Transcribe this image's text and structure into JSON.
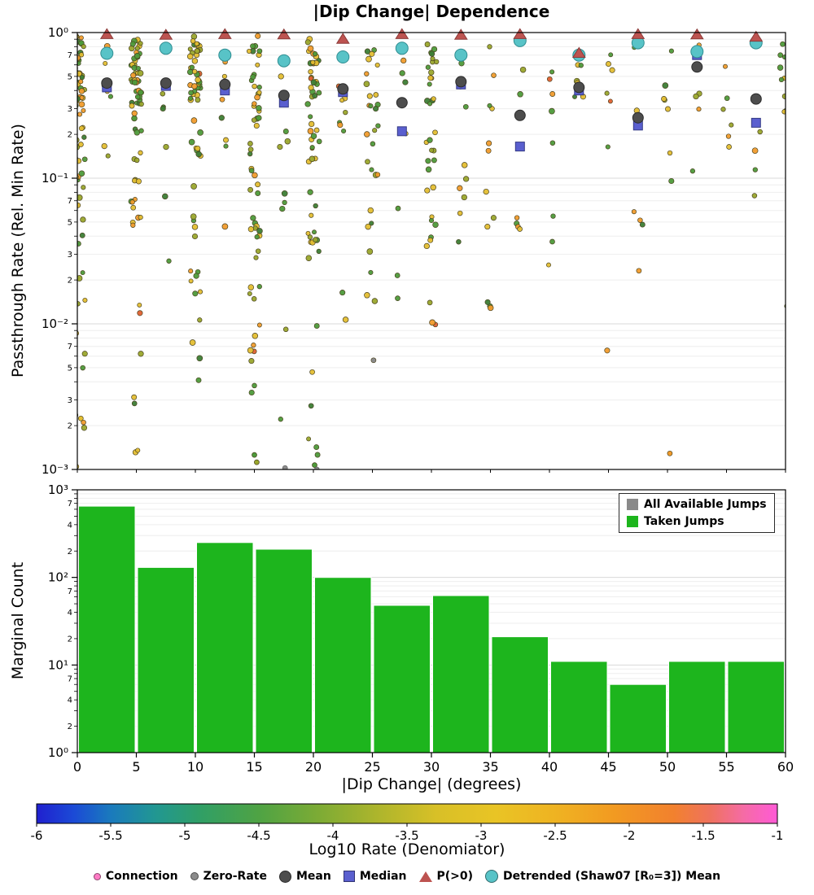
{
  "title": "|Dip Change| Dependence",
  "top_panel": {
    "ylabel": "Passthrough Rate (Rel. Min Rate)",
    "y_major_labels": [
      "10⁰",
      "10⁻¹",
      "10⁻²",
      "10⁻³"
    ],
    "y_minor_labeled": [
      7,
      5,
      3,
      2
    ]
  },
  "bottom_panel": {
    "ylabel": "Marginal Count",
    "xlabel": "|Dip Change| (degrees)",
    "y_major_labels": [
      "10³",
      "10²",
      "10¹",
      "10⁰"
    ],
    "y_minor_labeled": [
      7,
      4,
      2
    ],
    "legend": [
      {
        "label": "All Available Jumps",
        "color": "#8a8a8a"
      },
      {
        "label": "Taken Jumps",
        "color": "#1db51d"
      }
    ]
  },
  "colorbar": {
    "title": "Log10 Rate (Denomiator)",
    "range": [
      -6,
      -1
    ],
    "ticks": [
      -6,
      -5.5,
      -5,
      -4.5,
      -4,
      -3.5,
      -3,
      -2.5,
      -2,
      -1.5,
      -1
    ],
    "stops": [
      [
        0,
        "#2020cf"
      ],
      [
        0.05,
        "#1b4ad6"
      ],
      [
        0.1,
        "#1a7abd"
      ],
      [
        0.16,
        "#219792"
      ],
      [
        0.22,
        "#309f66"
      ],
      [
        0.3,
        "#4fa344"
      ],
      [
        0.38,
        "#7cab35"
      ],
      [
        0.46,
        "#adb52c"
      ],
      [
        0.54,
        "#d8c027"
      ],
      [
        0.62,
        "#e9c425"
      ],
      [
        0.7,
        "#efb322"
      ],
      [
        0.78,
        "#f29a21"
      ],
      [
        0.86,
        "#f2812e"
      ],
      [
        0.91,
        "#ef725f"
      ],
      [
        0.955,
        "#f56ba6"
      ],
      [
        1,
        "#ff5ad6"
      ]
    ]
  },
  "legend_bottom": [
    {
      "label": "Connection",
      "marker": "circle",
      "color": "#ff7bc5",
      "size": 7
    },
    {
      "label": "Zero-Rate",
      "marker": "circle",
      "color": "#8c8c8c",
      "size": 8
    },
    {
      "label": "Mean",
      "marker": "circle",
      "color": "#4d4d4d",
      "size": 13
    },
    {
      "label": "Median",
      "marker": "square",
      "color": "#5a5fcf",
      "size": 12
    },
    {
      "label": "P(>0)",
      "marker": "triangle",
      "color": "#bd5350",
      "size": 13
    },
    {
      "label": "Detrended (Shaw07 [R₀=3]) Mean",
      "marker": "circle",
      "color": "#58c3c7",
      "size": 14
    }
  ],
  "chart_data": [
    {
      "type": "scatter",
      "title": "|Dip Change| Dependence",
      "xlabel": "",
      "ylabel": "Passthrough Rate (Rel. Min Rate)",
      "xlim": [
        0,
        60
      ],
      "ylim_log10": [
        -3,
        0
      ],
      "grid": true,
      "x_bin_centers": [
        2.5,
        7.5,
        12.5,
        17.5,
        22.5,
        27.5,
        32.5,
        37.5,
        42.5,
        47.5,
        52.5,
        57.5
      ],
      "series": [
        {
          "name": "Mean",
          "marker": "circle",
          "color": "#4d4d4d",
          "y": [
            0.45,
            0.45,
            0.44,
            0.37,
            0.41,
            0.33,
            0.46,
            0.27,
            0.42,
            0.26,
            0.58,
            0.35
          ]
        },
        {
          "name": "Median",
          "marker": "square",
          "color": "#5a5fcf",
          "y": [
            0.42,
            0.43,
            0.4,
            0.33,
            0.39,
            0.21,
            0.44,
            0.165,
            0.4,
            0.23,
            0.7,
            0.24
          ]
        },
        {
          "name": "P(>0)",
          "marker": "triangle",
          "color": "#bd5350",
          "y": [
            0.97,
            0.96,
            0.97,
            0.965,
            0.9,
            0.97,
            0.96,
            0.97,
            0.72,
            0.97,
            0.965,
            0.93
          ]
        },
        {
          "name": "Detrended (Shaw07 [R₀=3]) Mean",
          "marker": "circle",
          "color": "#58c3c7",
          "y": [
            0.72,
            0.78,
            0.7,
            0.64,
            0.68,
            0.78,
            0.7,
            0.88,
            0.7,
            0.85,
            0.74,
            0.85
          ]
        }
      ],
      "zero_rate_points": [
        {
          "x": 17.6,
          "y_log": -2.99
        },
        {
          "x": 20.3,
          "y_log": -3.0
        }
      ],
      "extra_points": [
        {
          "x": 50.2,
          "y_log": -2.89,
          "color": "#f19b2c"
        },
        {
          "x": 15.2,
          "y_log": -2.95,
          "color": "#9aa72c"
        },
        {
          "x": 20.1,
          "y_log": -2.97,
          "color": "#4d9a3a"
        },
        {
          "x": 15.0,
          "y_log": -2.9,
          "color": "#4d9a3a"
        },
        {
          "x": 0.3,
          "y_log": -2.65,
          "color": "#e4be31"
        },
        {
          "x": 25.1,
          "y_log": -2.25,
          "color": "#8c8c8c"
        }
      ],
      "point_palette": [
        [
          "#4d9a3a",
          0.3
        ],
        [
          "#3c7d35",
          0.1
        ],
        [
          "#9aa72c",
          0.15
        ],
        [
          "#e4be31",
          0.3
        ],
        [
          "#f19b2c",
          0.13
        ],
        [
          "#e06030",
          0.02
        ]
      ],
      "scatter_clusters": [
        {
          "x": 0.2,
          "spread": 0.5,
          "n": 75,
          "y_log_ranges": [
            [
              -0.5,
              -0.02,
              0.5
            ],
            [
              -1.3,
              -0.5,
              0.25
            ],
            [
              -3.0,
              -1.3,
              0.25
            ]
          ]
        },
        {
          "x": 5.0,
          "spread": 0.45,
          "n": 70,
          "y_log_ranges": [
            [
              -0.5,
              -0.02,
              0.55
            ],
            [
              -1.3,
              -0.5,
              0.25
            ],
            [
              -2.9,
              -1.3,
              0.2
            ]
          ]
        },
        {
          "x": 10.0,
          "spread": 0.45,
          "n": 60,
          "y_log_ranges": [
            [
              -0.5,
              -0.02,
              0.55
            ],
            [
              -1.4,
              -0.5,
              0.25
            ],
            [
              -2.6,
              -1.4,
              0.2
            ]
          ]
        },
        {
          "x": 15.0,
          "spread": 0.45,
          "n": 55,
          "y_log_ranges": [
            [
              -0.6,
              -0.02,
              0.5
            ],
            [
              -1.5,
              -0.6,
              0.25
            ],
            [
              -3.0,
              -1.5,
              0.25
            ]
          ]
        },
        {
          "x": 20.0,
          "spread": 0.5,
          "n": 55,
          "y_log_ranges": [
            [
              -0.7,
              -0.02,
              0.5
            ],
            [
              -1.6,
              -0.7,
              0.3
            ],
            [
              -3.0,
              -1.6,
              0.2
            ]
          ]
        },
        {
          "x": 25.0,
          "spread": 0.5,
          "n": 28,
          "y_log_ranges": [
            [
              -0.6,
              -0.05,
              0.5
            ],
            [
              -1.5,
              -0.6,
              0.3
            ],
            [
              -2.2,
              -1.5,
              0.2
            ]
          ]
        },
        {
          "x": 30.0,
          "spread": 0.5,
          "n": 35,
          "y_log_ranges": [
            [
              -0.8,
              -0.02,
              0.6
            ],
            [
              -1.5,
              -0.8,
              0.25
            ],
            [
              -2.1,
              -1.5,
              0.15
            ]
          ]
        },
        {
          "x": 2.5,
          "spread": 0.35,
          "n": 7,
          "y_log_ranges": [
            [
              -0.8,
              -0.05,
              0.7
            ],
            [
              -1.6,
              -0.8,
              0.3
            ]
          ]
        },
        {
          "x": 7.5,
          "spread": 0.35,
          "n": 7,
          "y_log_ranges": [
            [
              -0.8,
              -0.05,
              0.7
            ],
            [
              -1.6,
              -0.8,
              0.3
            ]
          ]
        },
        {
          "x": 12.5,
          "spread": 0.35,
          "n": 7,
          "y_log_ranges": [
            [
              -0.8,
              -0.05,
              0.6
            ],
            [
              -1.8,
              -0.8,
              0.4
            ]
          ]
        },
        {
          "x": 17.5,
          "spread": 0.4,
          "n": 9,
          "y_log_ranges": [
            [
              -0.8,
              -0.05,
              0.6
            ],
            [
              -2.9,
              -0.8,
              0.4
            ]
          ]
        },
        {
          "x": 22.5,
          "spread": 0.4,
          "n": 9,
          "y_log_ranges": [
            [
              -0.8,
              -0.05,
              0.6
            ],
            [
              -2.3,
              -0.8,
              0.4
            ]
          ]
        },
        {
          "x": 27.5,
          "spread": 0.4,
          "n": 7,
          "y_log_ranges": [
            [
              -0.9,
              -0.05,
              0.6
            ],
            [
              -2.2,
              -0.9,
              0.4
            ]
          ]
        },
        {
          "x": 32.5,
          "spread": 0.5,
          "n": 10,
          "y_log_ranges": [
            [
              -0.7,
              -0.05,
              0.6
            ],
            [
              -1.6,
              -0.7,
              0.4
            ]
          ]
        },
        {
          "x": 35.0,
          "spread": 0.45,
          "n": 12,
          "y_log_ranges": [
            [
              -0.8,
              -0.05,
              0.5
            ],
            [
              -1.9,
              -0.8,
              0.5
            ]
          ]
        },
        {
          "x": 37.5,
          "spread": 0.4,
          "n": 6,
          "y_log_ranges": [
            [
              -0.9,
              -0.1,
              0.6
            ],
            [
              -1.8,
              -0.9,
              0.4
            ]
          ]
        },
        {
          "x": 40.0,
          "spread": 0.4,
          "n": 8,
          "y_log_ranges": [
            [
              -0.8,
              -0.05,
              0.6
            ],
            [
              -1.7,
              -0.8,
              0.4
            ]
          ]
        },
        {
          "x": 42.5,
          "spread": 0.4,
          "n": 6,
          "y_log_ranges": [
            [
              -0.7,
              -0.05,
              0.7
            ],
            [
              -1.5,
              -0.7,
              0.3
            ]
          ]
        },
        {
          "x": 45.0,
          "spread": 0.4,
          "n": 7,
          "y_log_ranges": [
            [
              -0.8,
              -0.05,
              0.6
            ],
            [
              -2.5,
              -0.8,
              0.4
            ]
          ]
        },
        {
          "x": 47.5,
          "spread": 0.4,
          "n": 6,
          "y_log_ranges": [
            [
              -0.9,
              -0.05,
              0.6
            ],
            [
              -1.8,
              -0.9,
              0.4
            ]
          ]
        },
        {
          "x": 50.0,
          "spread": 0.4,
          "n": 7,
          "y_log_ranges": [
            [
              -0.8,
              -0.05,
              0.7
            ],
            [
              -1.8,
              -0.8,
              0.3
            ]
          ]
        },
        {
          "x": 52.5,
          "spread": 0.4,
          "n": 5,
          "y_log_ranges": [
            [
              -0.7,
              -0.05,
              0.7
            ],
            [
              -1.4,
              -0.7,
              0.3
            ]
          ]
        },
        {
          "x": 55.0,
          "spread": 0.4,
          "n": 6,
          "y_log_ranges": [
            [
              -0.8,
              -0.05,
              0.7
            ],
            [
              -1.6,
              -0.8,
              0.3
            ]
          ]
        },
        {
          "x": 57.5,
          "spread": 0.4,
          "n": 6,
          "y_log_ranges": [
            [
              -0.8,
              -0.05,
              0.7
            ],
            [
              -1.6,
              -0.8,
              0.3
            ]
          ]
        },
        {
          "x": 59.8,
          "spread": 0.3,
          "n": 10,
          "y_log_ranges": [
            [
              -0.6,
              -0.02,
              0.6
            ],
            [
              -2.1,
              -0.6,
              0.4
            ]
          ]
        }
      ]
    },
    {
      "type": "bar",
      "ylabel": "Marginal Count",
      "xlabel": "|Dip Change| (degrees)",
      "ylim_log10": [
        0,
        3
      ],
      "bar_color": "#1db51d",
      "bin_edges": [
        0,
        5,
        10,
        15,
        20,
        25,
        30,
        35,
        40,
        45,
        50,
        55,
        60
      ],
      "counts": [
        650,
        130,
        250,
        210,
        100,
        48,
        62,
        21,
        11,
        6,
        11,
        11
      ],
      "x_ticks": [
        0,
        5,
        10,
        15,
        20,
        25,
        30,
        35,
        40,
        45,
        50,
        55,
        60
      ],
      "legend": [
        "All Available Jumps",
        "Taken Jumps"
      ]
    }
  ]
}
